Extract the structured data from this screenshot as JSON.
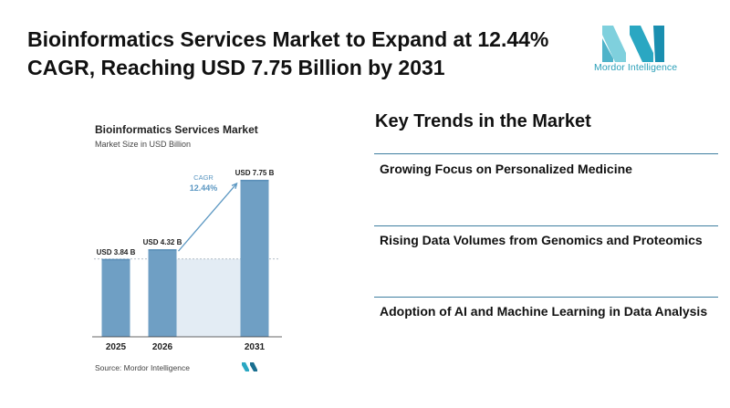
{
  "headline": "Bioinformatics Services Market to Expand at 12.44% CAGR, Reaching USD 7.75 Billion by 2031",
  "logo": {
    "text": "Mordor Intelligence",
    "colors": {
      "left": "#7fd0dd",
      "right": "#1a8fb0"
    }
  },
  "chart_panel": {
    "title": "Bioinformatics Services Market",
    "subtitle": "Market Size in USD Billion",
    "source": "Source: Mordor Intelligence"
  },
  "chart_data": {
    "type": "bar",
    "title": "Bioinformatics Services Market",
    "ylabel": "Market Size in USD Billion",
    "xlabel": "",
    "categories": [
      "2025",
      "2026",
      "2031"
    ],
    "values": [
      3.84,
      4.32,
      7.75
    ],
    "value_labels": [
      "USD 3.84 B",
      "USD 4.32 B",
      "USD 7.75 B"
    ],
    "ylim": [
      0,
      8.2
    ],
    "reference_line_value": 3.84,
    "annotation": {
      "label": "CAGR",
      "value": "12.44%"
    },
    "colors": {
      "bar": "#6f9fc4",
      "bar_top": "#5a8fb8",
      "band": "#e3ecf4",
      "arrow": "#5b97c2",
      "annotation": "#5b97c2"
    }
  },
  "trends": {
    "title": "Key Trends in the Market",
    "items": [
      "Growing Focus on Personalized Medicine",
      "Rising Data Volumes from Genomics and Proteomics",
      "Adoption of AI and Machine Learning in Data Analysis"
    ],
    "rule_color": "#3f7ea0"
  }
}
